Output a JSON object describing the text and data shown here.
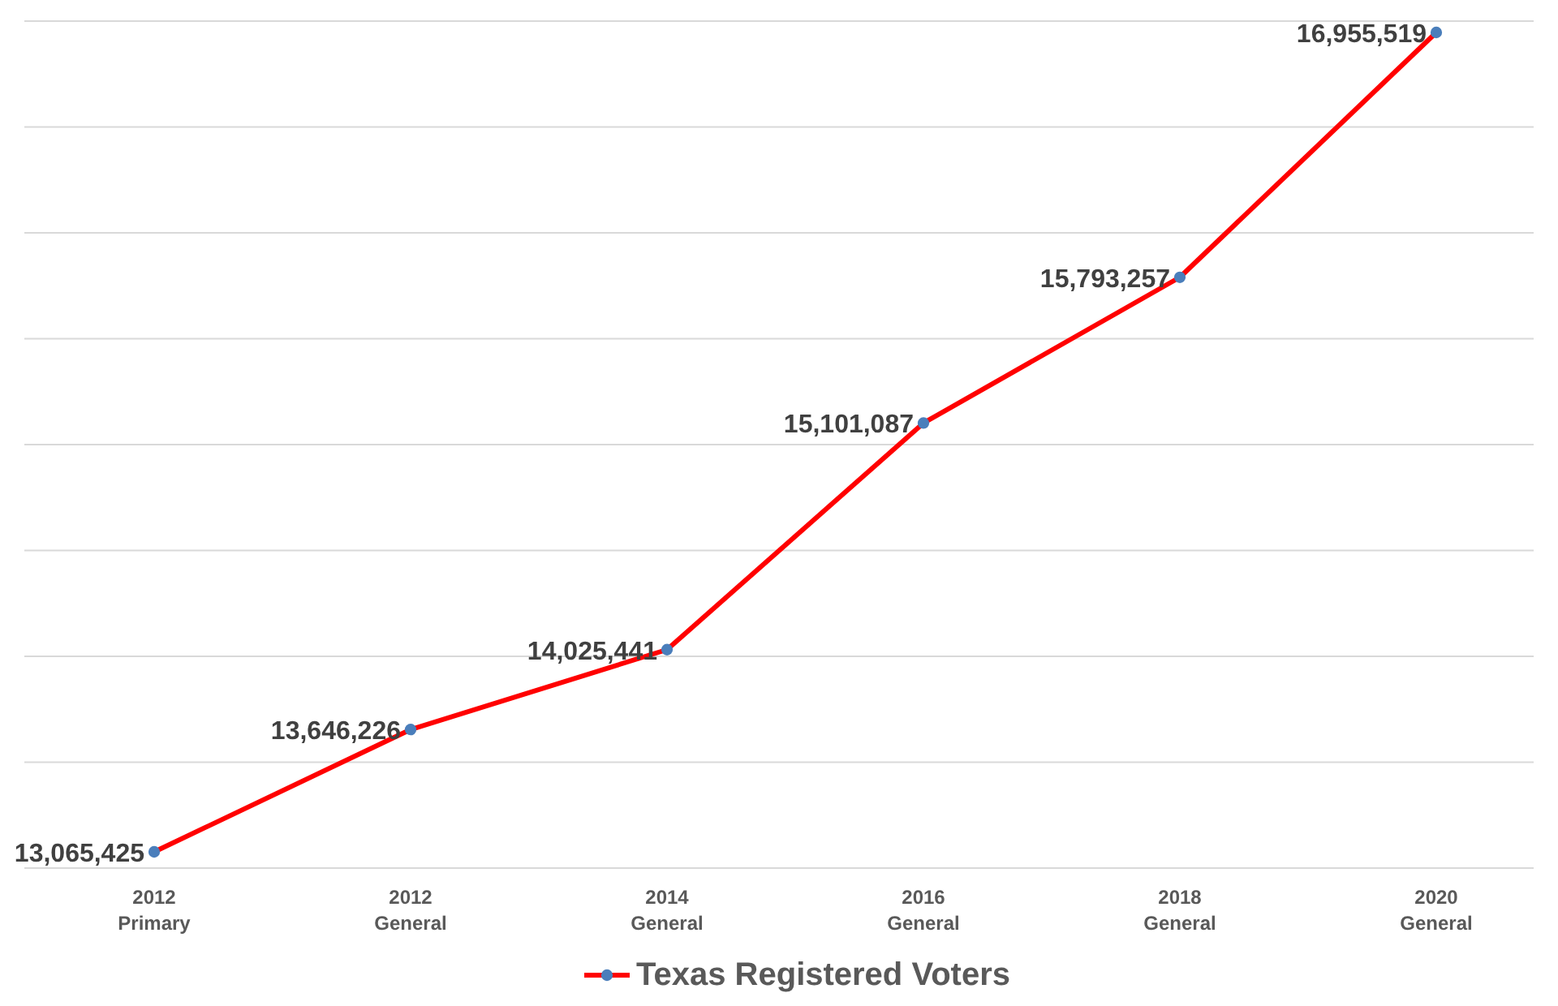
{
  "chart_data": {
    "type": "line",
    "categories": [
      "2012\nPrimary",
      "2012\nGeneral",
      "2014\nGeneral",
      "2016\nGeneral",
      "2018\nGeneral",
      "2020\nGeneral"
    ],
    "series": [
      {
        "name": "Texas Registered Voters",
        "color": "#ff0000",
        "values": [
          13065425,
          13646226,
          14025441,
          15101087,
          15793257,
          16955519
        ],
        "value_labels": [
          "13,065,425",
          "13,646,226",
          "14,025,441",
          "15,101,087",
          "15,793,257",
          "16,955,519"
        ]
      }
    ],
    "tick_labels": "x",
    "grid": "y",
    "legend": "bottom",
    "marker": "circle"
  }
}
